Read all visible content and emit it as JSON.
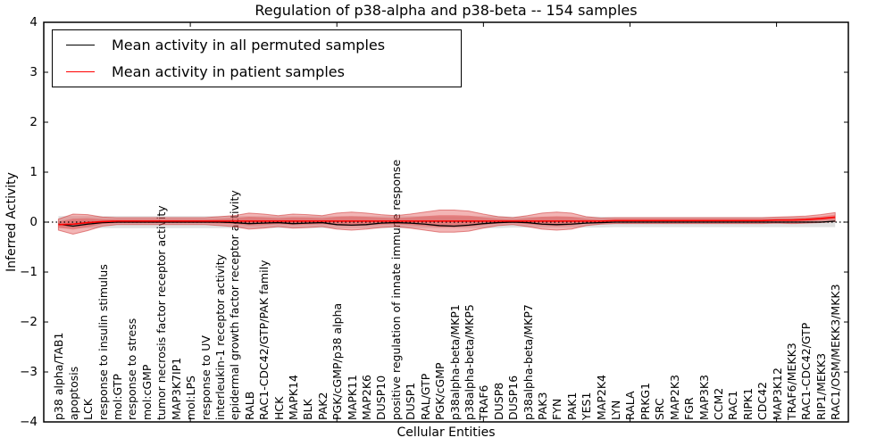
{
  "title": "Regulation of p38-alpha and p38-beta -- 154 samples",
  "axes": {
    "ylabel": "Inferred Activity",
    "xlabel": "Cellular Entities",
    "ytick_labels": [
      "4",
      "3",
      "2",
      "1",
      "0",
      "−1",
      "−2",
      "−3",
      "−4"
    ]
  },
  "legend": {
    "items": [
      {
        "label": "Mean activity in all permuted samples",
        "color": "#000000"
      },
      {
        "label": "Mean activity in patient samples",
        "color": "#ff0000"
      }
    ]
  },
  "chart_data": {
    "type": "line",
    "title": "Regulation of p38-alpha and p38-beta -- 154 samples",
    "xlabel": "Cellular Entities",
    "ylabel": "Inferred Activity",
    "ylim": [
      -4,
      4
    ],
    "xlim": [
      0,
      54.9
    ],
    "xticks_numeric": [
      10,
      20,
      30,
      40,
      50
    ],
    "grid": false,
    "legend_position": "upper left",
    "zero_line": {
      "style": "dotted",
      "color": "#000000",
      "y": 0
    },
    "categories": [
      "p38 alpha/TAB1",
      "apoptosis",
      "LCK",
      "response to insulin stimulus",
      "mol:GTP",
      "response to stress",
      "mol:cGMP",
      "tumor necrosis factor receptor activity",
      "MAP3K7IP1",
      "mol:LPS",
      "response to UV",
      "interleukin-1 receptor activity",
      "epidermal growth factor receptor activity",
      "RALB",
      "RAC1-CDC42/GTP/PAK family",
      "HCK",
      "MAPK14",
      "BLK",
      "PAK2",
      "PGK/cGMP/p38 alpha",
      "MAPK11",
      "MAP2K6",
      "DUSP10",
      "positive regulation of innate immune response",
      "DUSP1",
      "RAL/GTP",
      "PGK/cGMP",
      "p38alpha-beta/MKP1",
      "p38alpha-beta/MKP5",
      "TRAF6",
      "DUSP8",
      "DUSP16",
      "p38alpha-beta/MKP7",
      "PAK3",
      "FYN",
      "PAK1",
      "YES1",
      "MAP2K4",
      "LYN",
      "RALA",
      "PRKG1",
      "SRC",
      "MAP2K3",
      "FGR",
      "MAP3K3",
      "CCM2",
      "RAC1",
      "RIPK1",
      "CDC42",
      "MAP3K12",
      "TRAF6/MEKK3",
      "RAC1-CDC42/GTP",
      "RIP1/MEKK3",
      "RAC1/OSM/MEKK3/MKK3"
    ],
    "series": [
      {
        "name": "Mean activity in all permuted samples",
        "color": "#000000",
        "values": [
          -0.04,
          -0.08,
          -0.04,
          -0.01,
          0,
          0,
          0,
          0,
          0,
          0,
          0,
          0,
          -0.01,
          -0.03,
          -0.02,
          -0.01,
          -0.03,
          -0.02,
          -0.01,
          -0.05,
          -0.06,
          -0.05,
          -0.02,
          -0.01,
          -0.02,
          -0.04,
          -0.07,
          -0.08,
          -0.06,
          -0.03,
          -0.01,
          0,
          -0.01,
          -0.04,
          -0.05,
          -0.04,
          -0.02,
          -0.01,
          0,
          0,
          0,
          0,
          0,
          0,
          0,
          0,
          0,
          0,
          0,
          0,
          0,
          0,
          0,
          0.02
        ]
      },
      {
        "name": "Mean activity in patient samples",
        "color": "#ff0000",
        "values": [
          -0.05,
          -0.04,
          -0.01,
          0.01,
          0.02,
          0.02,
          0.02,
          0.02,
          0.02,
          0.02,
          0.02,
          0.02,
          0.02,
          0.02,
          0.02,
          0.02,
          0.02,
          0.02,
          0.02,
          0.02,
          0.02,
          0.02,
          0.02,
          0.02,
          0.02,
          0.02,
          0.02,
          0.02,
          0.02,
          0.02,
          0.02,
          0.02,
          0.02,
          0.02,
          0.02,
          0.02,
          0.02,
          0.02,
          0.03,
          0.03,
          0.03,
          0.03,
          0.03,
          0.03,
          0.03,
          0.03,
          0.03,
          0.03,
          0.03,
          0.04,
          0.04,
          0.05,
          0.07,
          0.1
        ]
      }
    ],
    "bands": [
      {
        "name": "patient-samples-spread",
        "color": "#e03c3c",
        "opacity": 0.38,
        "center_series": "Mean activity in patient samples",
        "halfwidths": [
          0.11,
          0.2,
          0.16,
          0.09,
          0.07,
          0.07,
          0.07,
          0.07,
          0.07,
          0.07,
          0.07,
          0.09,
          0.11,
          0.16,
          0.14,
          0.11,
          0.14,
          0.13,
          0.11,
          0.16,
          0.18,
          0.16,
          0.13,
          0.11,
          0.14,
          0.18,
          0.22,
          0.22,
          0.2,
          0.14,
          0.09,
          0.07,
          0.11,
          0.16,
          0.18,
          0.16,
          0.09,
          0.06,
          0.06,
          0.06,
          0.06,
          0.06,
          0.06,
          0.06,
          0.06,
          0.06,
          0.06,
          0.06,
          0.06,
          0.06,
          0.07,
          0.07,
          0.08,
          0.09
        ]
      },
      {
        "name": "permuted-samples-spread",
        "color": "#787878",
        "opacity": 0.22,
        "center_series": "zero",
        "halfwidths": [
          0.12,
          0.12,
          0.12,
          0.12,
          0.12,
          0.12,
          0.12,
          0.12,
          0.12,
          0.12,
          0.12,
          0.12,
          0.12,
          0.12,
          0.12,
          0.12,
          0.12,
          0.12,
          0.12,
          0.12,
          0.12,
          0.12,
          0.12,
          0.12,
          0.12,
          0.12,
          0.12,
          0.12,
          0.12,
          0.12,
          0.12,
          0.11,
          0.11,
          0.11,
          0.11,
          0.11,
          0.11,
          0.11,
          0.1,
          0.1,
          0.1,
          0.1,
          0.1,
          0.1,
          0.1,
          0.1,
          0.1,
          0.1,
          0.1,
          0.1,
          0.1,
          0.1,
          0.1,
          0.1
        ]
      }
    ]
  }
}
